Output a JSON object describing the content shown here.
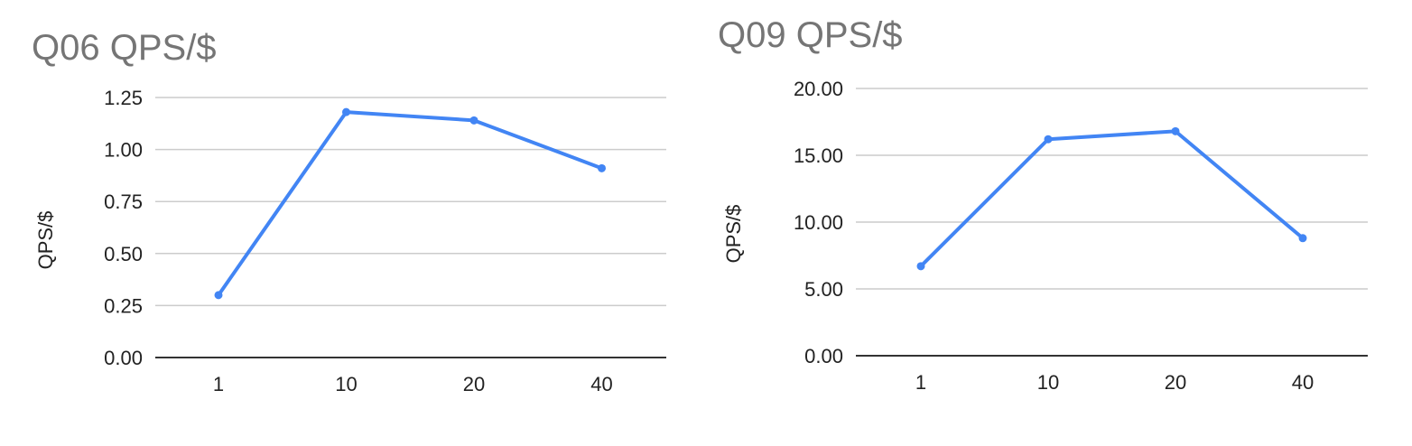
{
  "colors": {
    "series": "#4285f4",
    "grid": "#cccccc",
    "baseline": "#333333",
    "title": "#757575",
    "text": "#222222"
  },
  "chart_data": [
    {
      "type": "line",
      "title": "Q06 QPS/$",
      "xlabel": "",
      "ylabel": "QPS/$",
      "categories": [
        "1",
        "10",
        "20",
        "40"
      ],
      "series": [
        {
          "values": [
            0.3,
            1.18,
            1.14,
            0.91
          ]
        }
      ],
      "ylim": [
        0,
        1.25
      ],
      "yticks": [
        "0.00",
        "0.25",
        "0.50",
        "0.75",
        "1.00",
        "1.25"
      ],
      "grid": true,
      "legend": "none"
    },
    {
      "type": "line",
      "title": "Q09 QPS/$",
      "xlabel": "",
      "ylabel": "QPS/$",
      "categories": [
        "1",
        "10",
        "20",
        "40"
      ],
      "series": [
        {
          "values": [
            6.7,
            16.2,
            16.8,
            8.8
          ]
        }
      ],
      "ylim": [
        0,
        20
      ],
      "yticks": [
        "0.00",
        "5.00",
        "10.00",
        "15.00",
        "20.00"
      ],
      "grid": true,
      "legend": "none"
    }
  ]
}
